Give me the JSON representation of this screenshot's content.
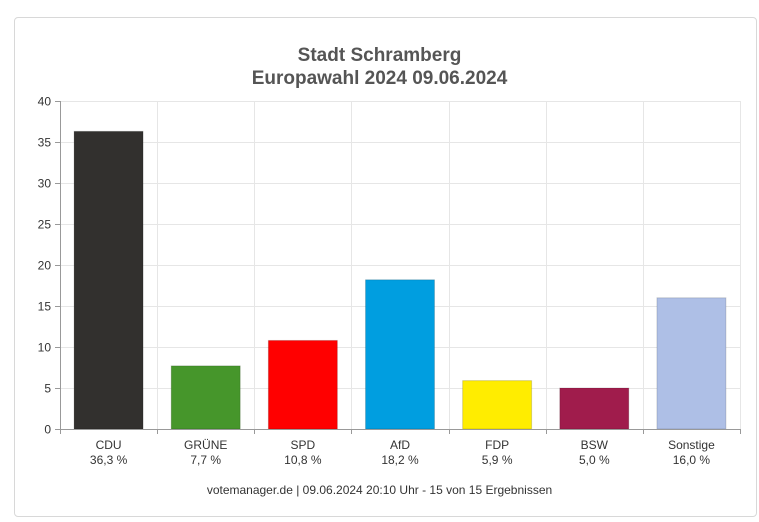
{
  "chart_data": {
    "type": "bar",
    "title": "Stadt Schramberg",
    "subtitle": "Europawahl 2024 09.06.2024",
    "categories": [
      "CDU",
      "GRÜNE",
      "SPD",
      "AfD",
      "FDP",
      "BSW",
      "Sonstige"
    ],
    "values": [
      36.3,
      7.7,
      10.8,
      18.2,
      5.9,
      5.0,
      16.0
    ],
    "value_labels": [
      "36,3 %",
      "7,7 %",
      "10,8 %",
      "18,2 %",
      "5,9 %",
      "5,0 %",
      "16,0 %"
    ],
    "colors": [
      "#32302e",
      "#46962b",
      "#ff0000",
      "#009ee0",
      "#ffed00",
      "#a01c4c",
      "#aebfe6"
    ],
    "yticks": [
      "0",
      "5",
      "10",
      "15",
      "20",
      "25",
      "30",
      "35",
      "40"
    ],
    "ylim": [
      0,
      40
    ],
    "grid": true,
    "footer": "votemanager.de | 09.06.2024 20:10 Uhr - 15 von 15 Ergebnissen"
  }
}
